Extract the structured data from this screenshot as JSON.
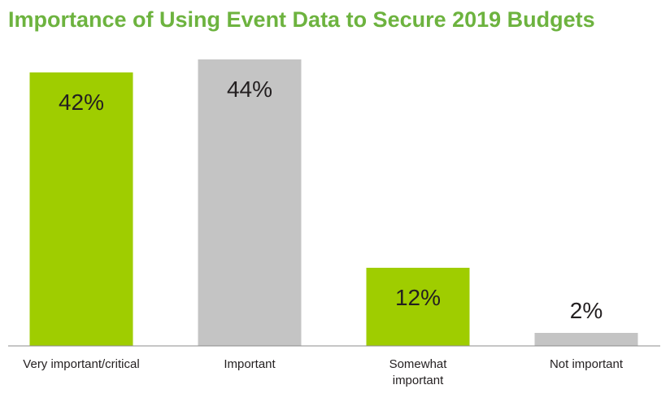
{
  "chart_data": {
    "type": "bar",
    "title": "Importance of Using Event Data to Secure 2019 Budgets",
    "categories": [
      "Very important/critical",
      "Important",
      "Somewhat important",
      "Not important"
    ],
    "category_lines": [
      [
        "Very important/critical"
      ],
      [
        "Important"
      ],
      [
        "Somewhat",
        "important"
      ],
      [
        "Not important"
      ]
    ],
    "values": [
      42,
      44,
      12,
      2
    ],
    "value_labels": [
      "42%",
      "44%",
      "12%",
      "2%"
    ],
    "bar_colors": [
      "#9fcd00",
      "#c4c4c4",
      "#9fcd00",
      "#c4c4c4"
    ],
    "title_color": "#6db33f",
    "value_label_color": "#231f20",
    "ylim": [
      0,
      44
    ],
    "grid": false,
    "legend": "none",
    "xlabel": "",
    "ylabel": ""
  }
}
